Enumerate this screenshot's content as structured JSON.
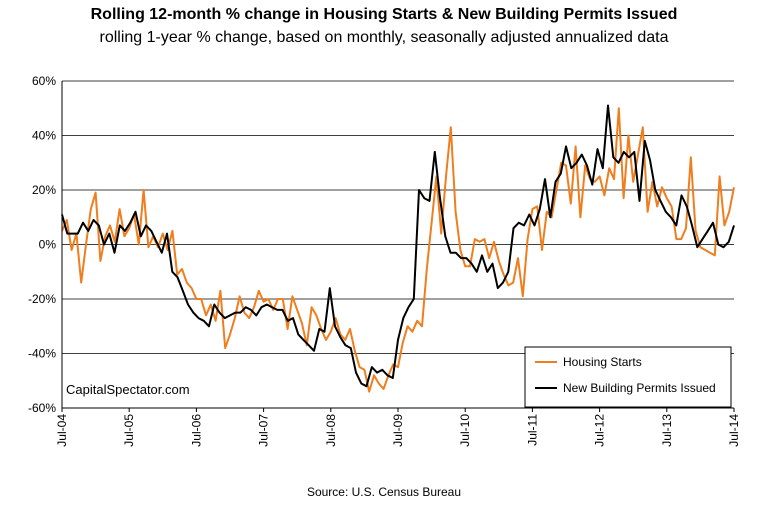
{
  "chart_data": {
    "type": "line",
    "title": "Rolling 12-month % change in Housing Starts & New Building Permits Issued",
    "subtitle": "rolling 1-year % change, based on monthly, seasonally adjusted annualized data",
    "watermark": "CapitalSpectator.com",
    "source": "Source: U.S. Census Bureau",
    "ylim": [
      -60,
      60
    ],
    "y_ticks": [
      "60%",
      "40%",
      "20%",
      "0%",
      "-20%",
      "-40%",
      "-60%"
    ],
    "y_tick_values": [
      60,
      40,
      20,
      0,
      -20,
      -40,
      -60
    ],
    "x_tick_labels": [
      "Jul-04",
      "Jul-05",
      "Jul-06",
      "Jul-07",
      "Jul-08",
      "Jul-09",
      "Jul-10",
      "Jul-11",
      "Jul-12",
      "Jul-13",
      "Jul-14"
    ],
    "x_start": "Jul-04",
    "x_end": "Jul-14",
    "grid": "horizontal",
    "legend_position": "bottom-right",
    "series": [
      {
        "name": "Housing Starts",
        "color": "#f07d1e",
        "values": [
          5,
          9,
          -2,
          4,
          -14,
          0,
          13,
          19,
          -6,
          3,
          7,
          1,
          13,
          3,
          6,
          11,
          0,
          20,
          -1,
          3,
          -1,
          4,
          -2,
          5,
          -11,
          -9,
          -14,
          -16,
          -20,
          -20,
          -26,
          -22,
          -28,
          -17,
          -38,
          -33,
          -27,
          -19,
          -25,
          -27,
          -23,
          -17,
          -21,
          -20,
          -24,
          -20,
          -20,
          -31,
          -19,
          -24,
          -29,
          -37,
          -23,
          -26,
          -31,
          -35,
          -32,
          -27,
          -33,
          -35,
          -31,
          -39,
          -45,
          -46,
          -54,
          -48,
          -51,
          -53,
          -48,
          -44,
          -45,
          -36,
          -30,
          -32,
          -28,
          -30,
          -9,
          8,
          25,
          4,
          25,
          43,
          12,
          -2,
          -8,
          -8,
          2,
          1,
          2,
          -5,
          1,
          -6,
          -11,
          -15,
          -14,
          -5,
          -19,
          2,
          13,
          14,
          -2,
          12,
          10,
          20,
          30,
          29,
          15,
          36,
          10,
          29,
          24,
          23,
          25,
          18,
          28,
          24,
          50,
          17,
          40,
          23,
          33,
          43,
          12,
          23,
          14,
          21,
          17,
          14,
          2,
          2,
          6,
          32,
          5,
          -1,
          -2,
          -3,
          -4,
          25,
          7,
          12,
          21
        ],
        "x_first_index": 0
      },
      {
        "name": "New Building Permits Issued",
        "color": "#000000",
        "values": [
          11,
          4,
          4,
          4,
          8,
          5,
          9,
          7,
          0,
          4,
          -3,
          7,
          5,
          8,
          12,
          3,
          7,
          5,
          1,
          -3,
          4,
          -10,
          -12,
          -17,
          -22,
          -25,
          -27,
          -28,
          -30,
          -22,
          -25,
          -27,
          -26,
          -25,
          -25,
          -23,
          -24,
          -26,
          -23,
          -22,
          -23,
          -24,
          -24,
          -28,
          -27,
          -33,
          -35,
          -37,
          -39,
          -31,
          -32,
          -16,
          -30,
          -34,
          -37,
          -38,
          -47,
          -51,
          -52,
          -45,
          -47,
          -46,
          -48,
          -49,
          -35,
          -27,
          -23,
          -20,
          20,
          17,
          16,
          34,
          17,
          3,
          -3,
          -3,
          -5,
          -5,
          -7,
          -10,
          -4,
          -10,
          -7,
          -16,
          -14,
          -10,
          6,
          8,
          7,
          11,
          7,
          13,
          24,
          10,
          23,
          26,
          36,
          28,
          30,
          33,
          29,
          22,
          35,
          28,
          51,
          32,
          30,
          34,
          32,
          34,
          16,
          38,
          31,
          20,
          16,
          12,
          10,
          7,
          18,
          14,
          7,
          -1,
          2,
          5,
          8,
          0,
          -1,
          1,
          7
        ]
      }
    ]
  }
}
